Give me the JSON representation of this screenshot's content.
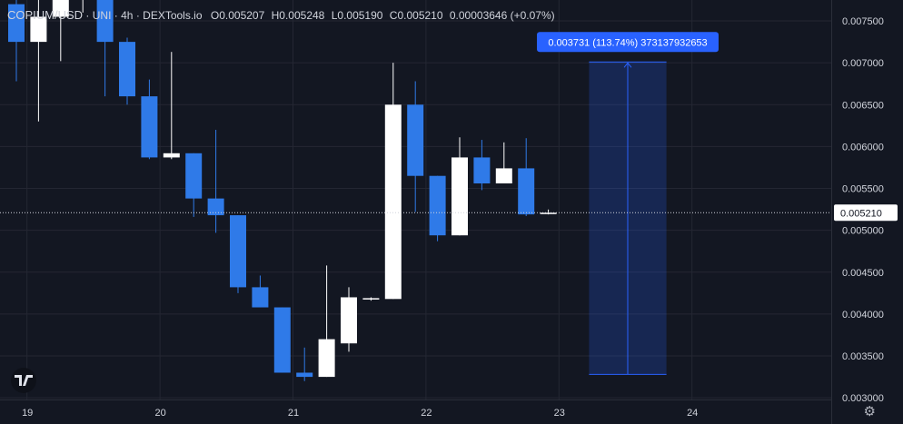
{
  "legend": {
    "symbol": "COPIUM/USD",
    "exchange": "UNI",
    "interval": "4h",
    "source": "DEXTools.io",
    "o_label": "O",
    "o_value": "0.005207",
    "h_label": "H",
    "h_value": "0.005248",
    "l_label": "L",
    "l_value": "0.005190",
    "c_label": "C",
    "c_value": "0.005210",
    "change": "0.00003646 (+0.07%)"
  },
  "measure_label": "0.003731 (113.74%) 373137932653",
  "last_price_label": "0.005210",
  "colors": {
    "background": "#131722",
    "up": "#ffffff",
    "down": "#2f7ae8",
    "measure": "#2962ff",
    "grid": "#242733",
    "text": "#d1d4dc"
  },
  "icons": {
    "logo": "tradingview-logo-icon",
    "settings": "gear-icon"
  },
  "chart_data": {
    "type": "candlestick",
    "x_tick_labels": [
      "19",
      "20",
      "21",
      "22",
      "23",
      "24"
    ],
    "y_ticks": [
      "0.003000",
      "0.003500",
      "0.004000",
      "0.004500",
      "0.005000",
      "0.005500",
      "0.006000",
      "0.006500",
      "0.007000",
      "0.007500"
    ],
    "ylim": [
      0.00298,
      0.00775
    ],
    "x_index_of_day_ticks": [
      0.5,
      6.5,
      12.5,
      18.5,
      24.5,
      30.5
    ],
    "last_price": 0.00521,
    "candles": [
      {
        "o": 0.0077,
        "h": 0.0079,
        "l": 0.00678,
        "c": 0.00725
      },
      {
        "o": 0.00725,
        "h": 0.0079,
        "l": 0.0063,
        "c": 0.00755
      },
      {
        "o": 0.00755,
        "h": 0.0079,
        "l": 0.00702,
        "c": 0.0079
      },
      {
        "o": 0.0079,
        "h": 0.0079,
        "l": 0.0076,
        "c": 0.0079
      },
      {
        "o": 0.00785,
        "h": 0.0079,
        "l": 0.0066,
        "c": 0.00725
      },
      {
        "o": 0.00725,
        "h": 0.0073,
        "l": 0.0065,
        "c": 0.0066
      },
      {
        "o": 0.0066,
        "h": 0.0068,
        "l": 0.00585,
        "c": 0.00587
      },
      {
        "o": 0.00587,
        "h": 0.00713,
        "l": 0.00585,
        "c": 0.00592
      },
      {
        "o": 0.00592,
        "h": 0.00592,
        "l": 0.00516,
        "c": 0.00538
      },
      {
        "o": 0.00538,
        "h": 0.0062,
        "l": 0.00497,
        "c": 0.00518
      },
      {
        "o": 0.00518,
        "h": 0.00518,
        "l": 0.00425,
        "c": 0.00432
      },
      {
        "o": 0.00432,
        "h": 0.00446,
        "l": 0.00408,
        "c": 0.00408
      },
      {
        "o": 0.00408,
        "h": 0.00408,
        "l": 0.0033,
        "c": 0.0033
      },
      {
        "o": 0.0033,
        "h": 0.0036,
        "l": 0.0032,
        "c": 0.00325
      },
      {
        "o": 0.00325,
        "h": 0.00458,
        "l": 0.00325,
        "c": 0.0037
      },
      {
        "o": 0.00365,
        "h": 0.00432,
        "l": 0.00355,
        "c": 0.0042
      },
      {
        "o": 0.00418,
        "h": 0.0042,
        "l": 0.00416,
        "c": 0.00419
      },
      {
        "o": 0.00418,
        "h": 0.007,
        "l": 0.00418,
        "c": 0.0065
      },
      {
        "o": 0.0065,
        "h": 0.00678,
        "l": 0.00522,
        "c": 0.00565
      },
      {
        "o": 0.00565,
        "h": 0.00565,
        "l": 0.00487,
        "c": 0.00494
      },
      {
        "o": 0.00494,
        "h": 0.00611,
        "l": 0.00494,
        "c": 0.00587
      },
      {
        "o": 0.00587,
        "h": 0.00608,
        "l": 0.00548,
        "c": 0.00556
      },
      {
        "o": 0.00556,
        "h": 0.00605,
        "l": 0.00556,
        "c": 0.00574
      },
      {
        "o": 0.00574,
        "h": 0.0061,
        "l": 0.00517,
        "c": 0.00519
      },
      {
        "o": 0.005207,
        "h": 0.005248,
        "l": 0.00519,
        "c": 0.00521
      }
    ],
    "measure": {
      "from_index": 26,
      "to_index": 29,
      "from_price": 0.00328,
      "to_price": 0.00701
    }
  }
}
